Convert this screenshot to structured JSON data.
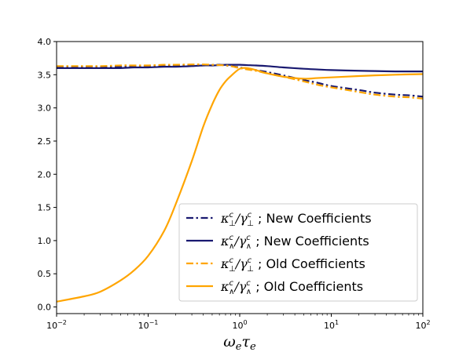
{
  "chart_data": {
    "type": "line",
    "xscale": "log",
    "xlim": [
      0.01,
      100
    ],
    "ylim": [
      -0.1,
      4.0
    ],
    "xlabel": "ωeτe",
    "ylabel": "",
    "title": "",
    "grid": false,
    "legend_position": "lower-right",
    "x_ticks": [
      {
        "value": 0.01,
        "base": "10",
        "exp": "−2"
      },
      {
        "value": 0.1,
        "base": "10",
        "exp": "−1"
      },
      {
        "value": 1,
        "base": "10",
        "exp": "0"
      },
      {
        "value": 10,
        "base": "10",
        "exp": "1"
      },
      {
        "value": 100,
        "base": "10",
        "exp": "2"
      }
    ],
    "y_ticks": [
      {
        "value": 0.0,
        "label": "0.0"
      },
      {
        "value": 0.5,
        "label": "0.5"
      },
      {
        "value": 1.0,
        "label": "1.0"
      },
      {
        "value": 1.5,
        "label": "1.5"
      },
      {
        "value": 2.0,
        "label": "2.0"
      },
      {
        "value": 2.5,
        "label": "2.5"
      },
      {
        "value": 3.0,
        "label": "3.0"
      },
      {
        "value": 3.5,
        "label": "3.5"
      },
      {
        "value": 4.0,
        "label": "4.0"
      }
    ],
    "x": [
      0.01,
      0.02,
      0.03,
      0.05,
      0.07,
      0.1,
      0.15,
      0.2,
      0.3,
      0.4,
      0.5,
      0.6,
      0.7,
      0.8,
      1.0,
      1.2,
      1.5,
      2,
      3,
      5,
      7,
      10,
      20,
      30,
      50,
      70,
      100
    ],
    "series": [
      {
        "name": "κ⊥c/γ⊥c ; New Coefficients",
        "name_parts": {
          "main1": "κ",
          "sub1": "⊥",
          "sup1": "c",
          "main2": "/γ",
          "sub2": "⊥",
          "sup2": "c",
          "rest": " ; New Coefficients"
        },
        "color": "#191970",
        "dash": "dashdot",
        "values": [
          3.61,
          3.61,
          3.62,
          3.62,
          3.63,
          3.63,
          3.63,
          3.64,
          3.65,
          3.65,
          3.65,
          3.65,
          3.64,
          3.63,
          3.61,
          3.59,
          3.57,
          3.54,
          3.49,
          3.42,
          3.38,
          3.33,
          3.27,
          3.23,
          3.2,
          3.19,
          3.17
        ]
      },
      {
        "name": "κ∧c/γ∧c ; New Coefficients",
        "name_parts": {
          "main1": "κ",
          "sub1": "∧",
          "sup1": "c",
          "main2": "/γ",
          "sub2": "∧",
          "sup2": "c",
          "rest": " ; New Coefficients"
        },
        "color": "#191970",
        "dash": "solid",
        "values": [
          3.6,
          3.6,
          3.6,
          3.6,
          3.61,
          3.61,
          3.62,
          3.62,
          3.63,
          3.64,
          3.64,
          3.645,
          3.65,
          3.65,
          3.65,
          3.645,
          3.64,
          3.63,
          3.61,
          3.59,
          3.58,
          3.57,
          3.56,
          3.555,
          3.55,
          3.55,
          3.55
        ]
      },
      {
        "name": "κ⊥c/γ⊥c ; Old Coefficients",
        "name_parts": {
          "main1": "κ",
          "sub1": "⊥",
          "sup1": "c",
          "main2": "/γ",
          "sub2": "⊥",
          "sup2": "c",
          "rest": " ; Old Coefficients"
        },
        "color": "#FFA500",
        "dash": "dashdot",
        "values": [
          3.63,
          3.63,
          3.63,
          3.64,
          3.64,
          3.64,
          3.65,
          3.65,
          3.655,
          3.655,
          3.65,
          3.645,
          3.64,
          3.63,
          3.6,
          3.58,
          3.56,
          3.52,
          3.47,
          3.4,
          3.35,
          3.31,
          3.24,
          3.2,
          3.17,
          3.16,
          3.14
        ]
      },
      {
        "name": "κ∧c/γ∧c ; Old Coefficients",
        "name_parts": {
          "main1": "κ",
          "sub1": "∧",
          "sup1": "c",
          "main2": "/γ",
          "sub2": "∧",
          "sup2": "c",
          "rest": " ; Old Coefficients"
        },
        "color": "#FFA500",
        "dash": "solid",
        "values": [
          0.08,
          0.16,
          0.23,
          0.4,
          0.55,
          0.77,
          1.15,
          1.55,
          2.2,
          2.72,
          3.05,
          3.27,
          3.4,
          3.48,
          3.59,
          3.6,
          3.57,
          3.52,
          3.47,
          3.44,
          3.45,
          3.46,
          3.48,
          3.49,
          3.5,
          3.505,
          3.51
        ]
      }
    ]
  }
}
